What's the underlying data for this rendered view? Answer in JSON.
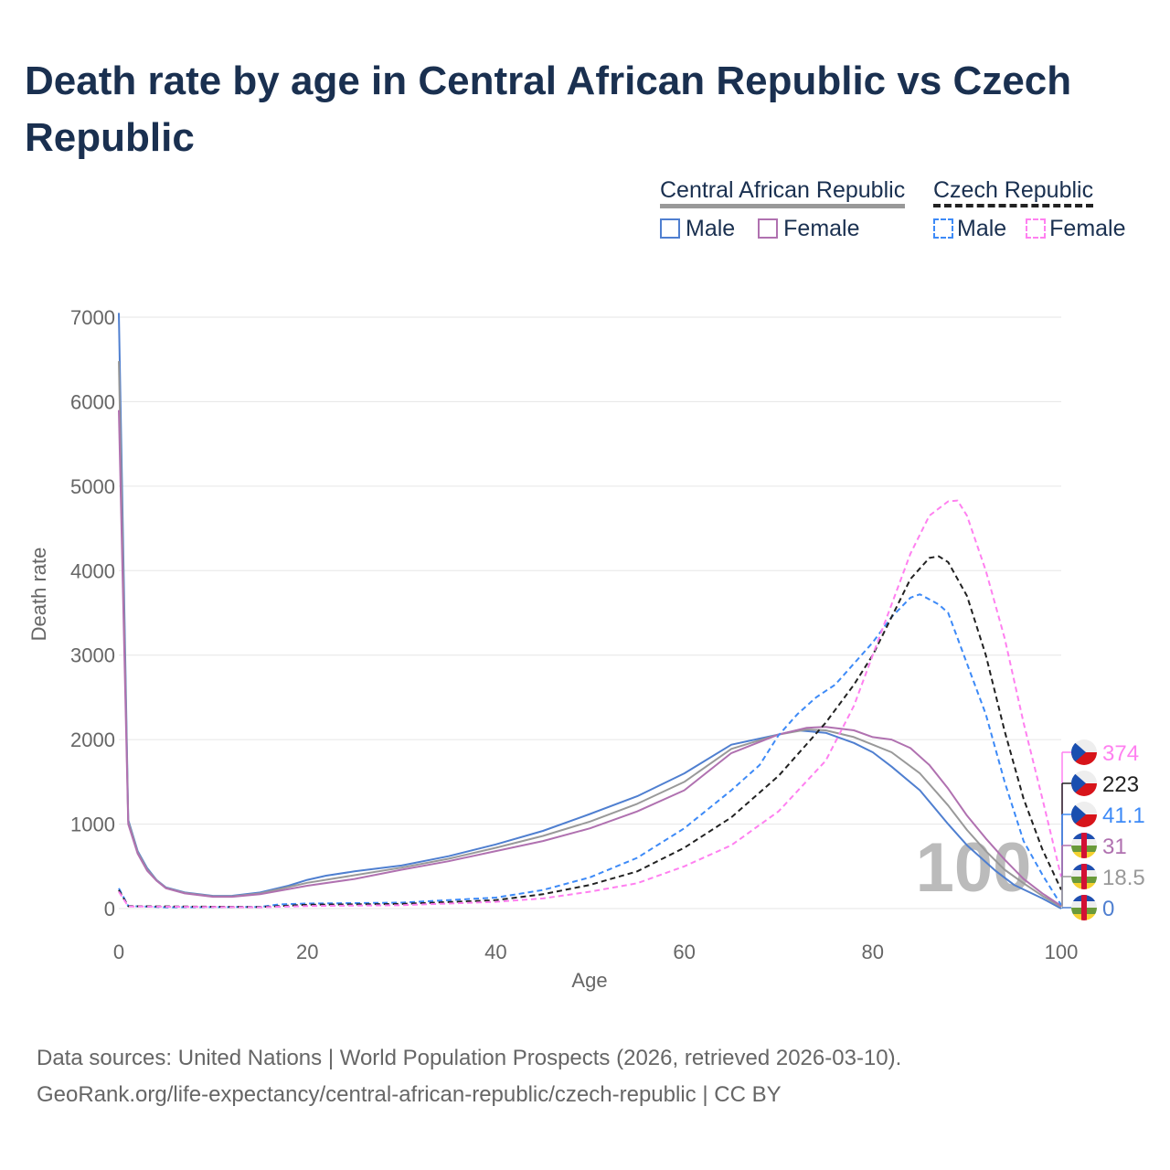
{
  "title": "Death rate by age in Central African Republic vs Czech Republic",
  "legend": {
    "groups": [
      {
        "name": "Central African Republic",
        "items": [
          "Male",
          "Female"
        ]
      },
      {
        "name": "Czech Republic",
        "items": [
          "Male",
          "Female"
        ]
      }
    ]
  },
  "source": {
    "line1": "Data sources: United Nations | World Population Prospects (2026, retrieved 2026-03-10).",
    "line2": "GeoRank.org/life-expectancy/central-african-republic/czech-republic | CC BY"
  },
  "watermark": "100",
  "chart_data": {
    "type": "line",
    "xlabel": "Age",
    "ylabel": "Death rate",
    "xlim": [
      0,
      100
    ],
    "ylim": [
      0,
      7000
    ],
    "xticks": [
      0,
      20,
      40,
      60,
      80,
      100
    ],
    "yticks": [
      0,
      1000,
      2000,
      3000,
      4000,
      5000,
      6000,
      7000
    ],
    "grid": true,
    "series": [
      {
        "name": "Central African Republic Male",
        "color": "#4f7fd0",
        "dash": false,
        "end_label": "0",
        "flag": "caf",
        "x": [
          0,
          1,
          2,
          3,
          4,
          5,
          7,
          10,
          12,
          15,
          18,
          20,
          22,
          25,
          30,
          35,
          40,
          45,
          50,
          55,
          60,
          65,
          70,
          72,
          75,
          78,
          80,
          82,
          85,
          88,
          90,
          93,
          95,
          98,
          100
        ],
        "y": [
          7050,
          1050,
          680,
          480,
          340,
          250,
          190,
          150,
          150,
          190,
          270,
          340,
          390,
          440,
          510,
          620,
          760,
          920,
          1120,
          1330,
          1600,
          1940,
          2060,
          2110,
          2080,
          1960,
          1850,
          1680,
          1400,
          1000,
          750,
          450,
          280,
          120,
          0
        ]
      },
      {
        "name": "Central African Republic Total",
        "color": "#999999",
        "dash": false,
        "end_label": "18.5",
        "flag": "caf",
        "x": [
          0,
          1,
          2,
          3,
          4,
          5,
          7,
          10,
          12,
          15,
          20,
          25,
          30,
          35,
          40,
          45,
          50,
          55,
          60,
          65,
          70,
          73,
          75,
          78,
          80,
          82,
          85,
          88,
          90,
          92,
          94,
          96,
          98,
          100
        ],
        "y": [
          6480,
          1030,
          665,
          465,
          335,
          245,
          185,
          145,
          145,
          180,
          305,
          395,
          485,
          590,
          720,
          860,
          1030,
          1240,
          1500,
          1890,
          2060,
          2120,
          2110,
          2030,
          1940,
          1850,
          1600,
          1220,
          930,
          680,
          460,
          300,
          150,
          18.5
        ]
      },
      {
        "name": "Central African Republic Female",
        "color": "#b071b0",
        "dash": false,
        "end_label": "31",
        "flag": "caf",
        "x": [
          0,
          1,
          2,
          3,
          4,
          5,
          7,
          10,
          12,
          15,
          20,
          25,
          30,
          35,
          40,
          45,
          50,
          55,
          60,
          65,
          70,
          73,
          75,
          78,
          80,
          82,
          84,
          86,
          88,
          90,
          92,
          94,
          96,
          98,
          100
        ],
        "y": [
          5900,
          1000,
          650,
          450,
          330,
          240,
          180,
          140,
          140,
          170,
          270,
          350,
          460,
          560,
          680,
          800,
          950,
          1150,
          1400,
          1840,
          2060,
          2140,
          2150,
          2110,
          2030,
          2000,
          1900,
          1700,
          1420,
          1100,
          830,
          580,
          350,
          180,
          31
        ]
      },
      {
        "name": "Czech Republic Male",
        "color": "#3d8af7",
        "dash": true,
        "end_label": "41.1",
        "flag": "cz",
        "x": [
          0,
          1,
          5,
          15,
          17,
          20,
          30,
          40,
          45,
          50,
          55,
          60,
          65,
          68,
          70,
          72,
          74,
          76,
          78,
          80,
          82,
          84,
          85,
          87,
          88,
          90,
          92,
          94,
          96,
          98,
          100
        ],
        "y": [
          240,
          30,
          15,
          20,
          50,
          60,
          70,
          130,
          220,
          370,
          600,
          950,
          1400,
          1700,
          2050,
          2300,
          2500,
          2650,
          2900,
          3150,
          3450,
          3680,
          3720,
          3600,
          3500,
          2900,
          2300,
          1500,
          800,
          400,
          41.1
        ]
      },
      {
        "name": "Czech Republic Total",
        "color": "#222222",
        "dash": true,
        "end_label": "223",
        "flag": "cz",
        "x": [
          0,
          1,
          15,
          20,
          30,
          40,
          45,
          50,
          55,
          60,
          65,
          70,
          75,
          78,
          80,
          82,
          84,
          86,
          87,
          88,
          90,
          92,
          94,
          96,
          98,
          100
        ],
        "y": [
          220,
          28,
          18,
          45,
          55,
          100,
          170,
          280,
          440,
          720,
          1080,
          1570,
          2200,
          2650,
          3000,
          3450,
          3900,
          4150,
          4170,
          4100,
          3700,
          3000,
          2100,
          1300,
          700,
          223
        ]
      },
      {
        "name": "Czech Republic Female",
        "color": "#ff80f0",
        "dash": true,
        "end_label": "374",
        "flag": "cz",
        "x": [
          0,
          1,
          15,
          20,
          30,
          40,
          45,
          50,
          55,
          60,
          65,
          70,
          75,
          78,
          80,
          82,
          84,
          86,
          88,
          89,
          90,
          92,
          94,
          96,
          98,
          100
        ],
        "y": [
          200,
          25,
          15,
          30,
          40,
          80,
          120,
          200,
          300,
          500,
          750,
          1150,
          1750,
          2400,
          3000,
          3600,
          4200,
          4650,
          4820,
          4830,
          4650,
          4000,
          3200,
          2200,
          1300,
          374
        ]
      }
    ]
  }
}
